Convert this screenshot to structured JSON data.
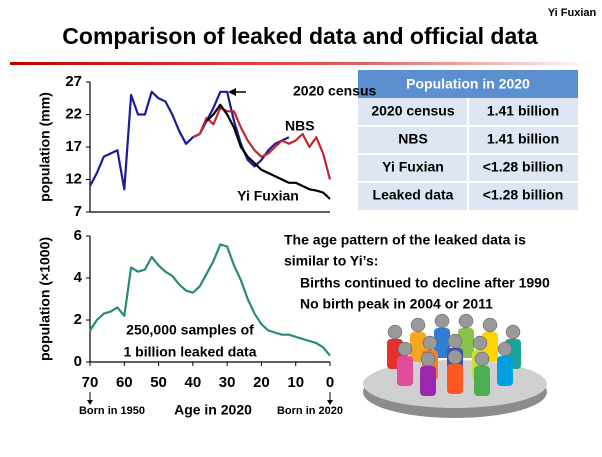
{
  "header": {
    "title": "Comparison of leaked data and official data",
    "author": "Yi Fuxian"
  },
  "chart_data": [
    {
      "type": "line",
      "y_label": "population (mm)",
      "xlim": [
        70,
        0
      ],
      "ylim": [
        7,
        27
      ],
      "yticks": [
        7,
        12,
        17,
        22,
        27
      ],
      "x": [
        70,
        68,
        66,
        64,
        62,
        60,
        58,
        56,
        54,
        52,
        50,
        48,
        46,
        44,
        42,
        40,
        38,
        36,
        34,
        32,
        30,
        28,
        26,
        24,
        22,
        20,
        18,
        16,
        14,
        12,
        10,
        8,
        6,
        4,
        2,
        0
      ],
      "series": [
        {
          "name": "2020 census",
          "color": "#1c1c9a",
          "values": [
            11,
            13,
            15.5,
            16,
            16.5,
            10.5,
            25,
            22,
            22,
            25.5,
            24.5,
            24,
            22,
            19.5,
            17.5,
            18.5,
            19,
            21,
            23,
            25.5,
            25.5,
            21,
            17.5,
            15,
            14,
            15,
            16.5,
            17.5,
            18,
            18.5,
            null,
            null,
            null,
            null,
            null,
            null
          ]
        },
        {
          "name": "NBS",
          "color": "#c0282d",
          "values": [
            null,
            null,
            null,
            null,
            null,
            null,
            null,
            null,
            null,
            null,
            null,
            null,
            null,
            null,
            null,
            18.5,
            19,
            21.5,
            20.5,
            23,
            22.5,
            22.5,
            20,
            18,
            16.5,
            15.5,
            16,
            17,
            18,
            17.5,
            18,
            19,
            17,
            18.5,
            16,
            12
          ]
        },
        {
          "name": "Yi Fuxian",
          "color": "#000000",
          "values": [
            null,
            null,
            null,
            null,
            null,
            null,
            null,
            null,
            null,
            null,
            null,
            null,
            null,
            null,
            null,
            null,
            null,
            21,
            22,
            23.5,
            22,
            20,
            17,
            15.5,
            14.5,
            13.5,
            13,
            12.5,
            12,
            11.5,
            11.5,
            11,
            10.5,
            10.3,
            10,
            9
          ]
        }
      ]
    },
    {
      "type": "line",
      "y_label": "population (×1000)",
      "x_label": "Age in 2020",
      "xlim": [
        70,
        0
      ],
      "xticks": [
        70,
        60,
        50,
        40,
        30,
        20,
        10,
        0
      ],
      "ylim": [
        0,
        6
      ],
      "yticks": [
        0,
        2,
        4,
        6
      ],
      "color": "#2a8a7a",
      "x": [
        70,
        68,
        66,
        64,
        62,
        60,
        58,
        56,
        54,
        52,
        50,
        48,
        46,
        44,
        42,
        40,
        38,
        36,
        34,
        32,
        30,
        28,
        26,
        24,
        22,
        20,
        18,
        16,
        14,
        12,
        10,
        8,
        6,
        4,
        2,
        0
      ],
      "values": [
        1.5,
        2.0,
        2.3,
        2.4,
        2.6,
        2.2,
        4.5,
        4.3,
        4.4,
        5.0,
        4.6,
        4.3,
        4.1,
        3.7,
        3.4,
        3.3,
        3.6,
        4.2,
        4.8,
        5.6,
        5.5,
        4.6,
        3.9,
        3.0,
        2.3,
        1.8,
        1.5,
        1.4,
        1.3,
        1.3,
        1.2,
        1.1,
        1.0,
        0.9,
        0.7,
        0.3
      ],
      "annotations": [
        "250,000 samples of",
        "1 billion leaked data",
        "Born in 1950",
        "Born in 2020"
      ]
    }
  ],
  "table": {
    "header": "Population in 2020",
    "rows": [
      [
        "2020 census",
        "1.41 billion"
      ],
      [
        "NBS",
        "1.41 billion"
      ],
      [
        "Yi Fuxian",
        "<1.28 billion"
      ],
      [
        "Leaked data",
        "<1.28 billion"
      ]
    ]
  },
  "notes": {
    "lines": [
      "The age pattern of the leaked data is",
      "similar to Yi’s:"
    ],
    "bullets": [
      "Births continued to decline after 1990",
      "No birth peak in 2004 or 2011"
    ]
  }
}
